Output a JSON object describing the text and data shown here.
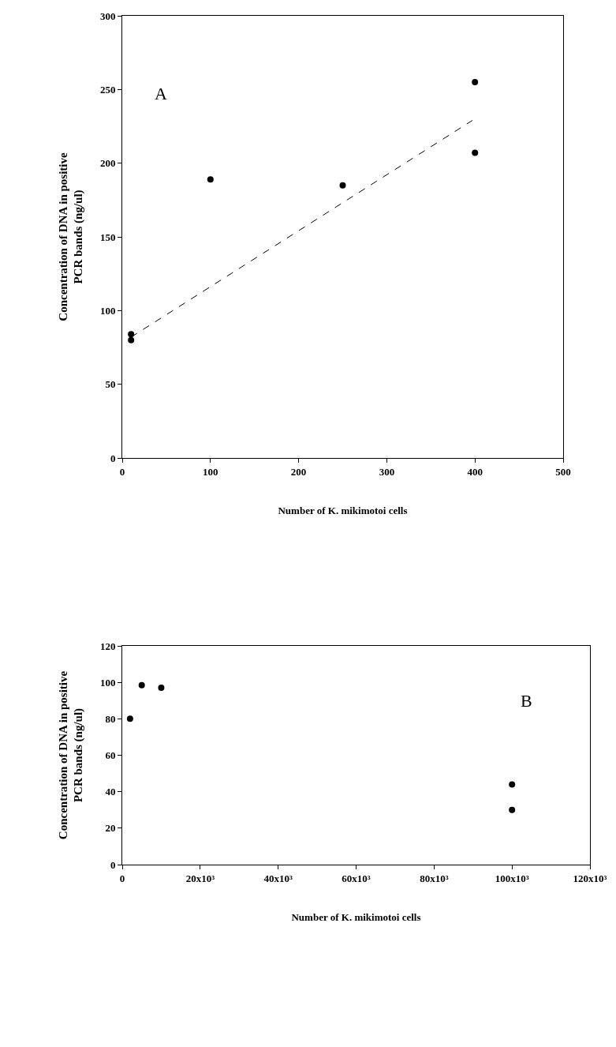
{
  "chart_data": [
    {
      "type": "scatter",
      "xlabel": "Number of K. mikimotoi cells",
      "ylabel": "Concentration of DNA in positive\nPCR bands (ng/ul)",
      "annotations": [
        "A"
      ],
      "xlim": [
        0,
        500
      ],
      "xticks": [
        0,
        100,
        200,
        300,
        400,
        500
      ],
      "ylim": [
        0,
        300
      ],
      "yticks": [
        0,
        50,
        100,
        150,
        200,
        250,
        300
      ],
      "grid": false,
      "marker": "circle",
      "series": [
        {
          "type": "scatter",
          "color": "#000000",
          "x": [
            10,
            10,
            100,
            250,
            400,
            400
          ],
          "values": [
            84,
            80,
            189,
            185,
            255,
            207
          ]
        },
        {
          "type": "line",
          "color": "#000000",
          "line_style": "dashed",
          "marker": "none",
          "x": [
            10,
            397
          ],
          "values": [
            82,
            229
          ]
        }
      ]
    },
    {
      "type": "scatter",
      "xlabel": "Number of K. mikimotoi cells",
      "ylabel": "Concentration of DNA in positive\nPCR bands (ng/ul)",
      "annotations": [
        "B"
      ],
      "xlim": [
        0,
        120000
      ],
      "xticks": [
        0,
        {
          "value": 20000,
          "label": "20x10³"
        },
        {
          "value": 40000,
          "label": "40x10³"
        },
        {
          "value": 60000,
          "label": "60x10³"
        },
        {
          "value": 80000,
          "label": "80x10³"
        },
        {
          "value": 100000,
          "label": "100x10³"
        },
        {
          "value": 120000,
          "label": "120x10³"
        }
      ],
      "ylim": [
        0,
        120
      ],
      "yticks": [
        0,
        20,
        40,
        60,
        80,
        100,
        120
      ],
      "grid": false,
      "marker": "circle",
      "series": [
        {
          "type": "scatter",
          "color": "#000000",
          "x": [
            2000,
            5000,
            10000,
            100000,
            100000
          ],
          "values": [
            80,
            98.5,
            97,
            44,
            30
          ]
        }
      ]
    }
  ]
}
